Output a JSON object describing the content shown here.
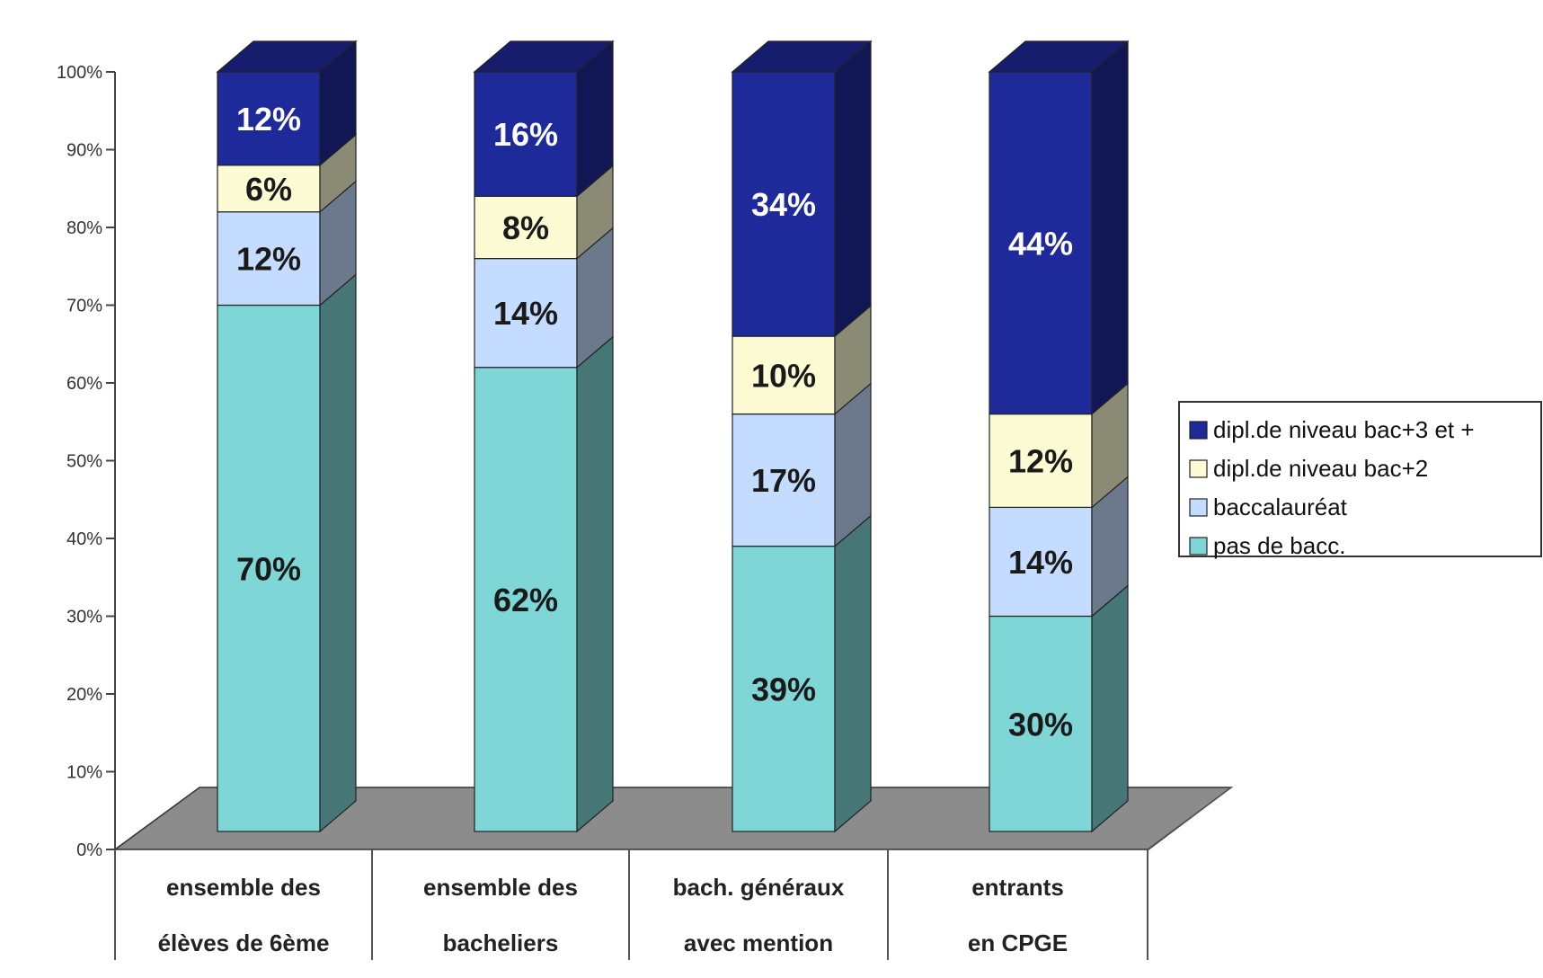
{
  "chart_data": {
    "type": "bar",
    "stacked": true,
    "three_d": true,
    "title": "",
    "xlabel": "",
    "ylabel": "",
    "ylim": [
      0,
      100
    ],
    "yticks": [
      "0%",
      "10%",
      "20%",
      "30%",
      "40%",
      "50%",
      "60%",
      "70%",
      "80%",
      "90%",
      "100%"
    ],
    "grid": false,
    "legend_position": "right",
    "categories": [
      [
        "ensemble des",
        "élèves de 6ème"
      ],
      [
        "ensemble des",
        "bacheliers"
      ],
      [
        "bach. généraux",
        "avec mention"
      ],
      [
        "entrants",
        "en CPGE"
      ]
    ],
    "series": [
      {
        "name": "pas de bacc.",
        "values": [
          70,
          62,
          39,
          30
        ],
        "labels": [
          "70%",
          "62%",
          "39%",
          "30%"
        ],
        "color": "#7fd6d6"
      },
      {
        "name": "baccalauréat",
        "values": [
          12,
          14,
          17,
          14
        ],
        "labels": [
          "12%",
          "14%",
          "17%",
          "14%"
        ],
        "color": "#c4dcff"
      },
      {
        "name": "dipl.de niveau bac+2",
        "values": [
          6,
          8,
          10,
          12
        ],
        "labels": [
          "6%",
          "8%",
          "10%",
          "12%"
        ],
        "color": "#fdfbd4"
      },
      {
        "name": "dipl.de niveau bac+3 et +",
        "values": [
          12,
          16,
          34,
          44
        ],
        "labels": [
          "12%",
          "16%",
          "34%",
          "44%"
        ],
        "color": "#1e2a9a"
      }
    ],
    "legend_order": [
      "dipl.de niveau bac+3 et +",
      "dipl.de niveau bac+2",
      "baccalauréat",
      "pas de bacc."
    ],
    "floor_color": "#8c8c8c"
  }
}
